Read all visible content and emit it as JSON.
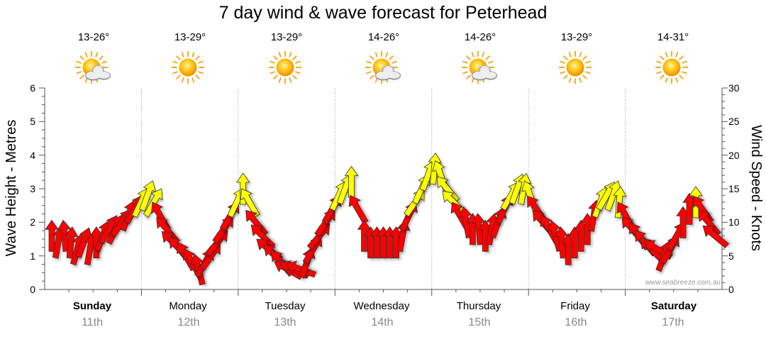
{
  "chart_data": {
    "type": "arrow-timeseries",
    "title": "7 day wind & wave forecast for Peterhead",
    "ylabel_left": "Wave Height - Metres",
    "ylabel_right": "Wind Speed - Knots",
    "left_ticks": [
      "0",
      "1",
      "2",
      "3",
      "4",
      "5",
      "6"
    ],
    "right_ticks": [
      "0",
      "5",
      "10",
      "15",
      "20",
      "25",
      "30"
    ],
    "ylim_left": [
      0,
      6
    ],
    "ylim_right": [
      0,
      30
    ],
    "watermark": "www.seabreeze.com.au",
    "days": [
      {
        "name": "Sunday",
        "date": "11th",
        "temp": "13-26°",
        "icon": "sun-cloud",
        "bold": true
      },
      {
        "name": "Monday",
        "date": "12th",
        "temp": "13-29°",
        "icon": "sun",
        "bold": false
      },
      {
        "name": "Tuesday",
        "date": "13th",
        "temp": "13-29°",
        "icon": "sun",
        "bold": false
      },
      {
        "name": "Wednesday",
        "date": "14th",
        "temp": "14-26°",
        "icon": "sun-cloud",
        "bold": false
      },
      {
        "name": "Thursday",
        "date": "15th",
        "temp": "14-26°",
        "icon": "sun-cloud",
        "bold": false
      },
      {
        "name": "Friday",
        "date": "16th",
        "temp": "13-29°",
        "icon": "sun",
        "bold": false
      },
      {
        "name": "Saturday",
        "date": "17th",
        "temp": "14-31°",
        "icon": "sun",
        "bold": true
      }
    ],
    "wind_knots": [
      8,
      7,
      8,
      7,
      6,
      7,
      6,
      7,
      8,
      9,
      9,
      10,
      11,
      12,
      13,
      14,
      13,
      11,
      9,
      7,
      6,
      5,
      4,
      3,
      4,
      5,
      7,
      9,
      11,
      13,
      15,
      13,
      10,
      8,
      6,
      5,
      4,
      3,
      3,
      3,
      4,
      6,
      8,
      10,
      12,
      14,
      15,
      16,
      12,
      8,
      7,
      7,
      7,
      7,
      7,
      8,
      11,
      13,
      15,
      17,
      18,
      17,
      15,
      13,
      11,
      10,
      9,
      9,
      8,
      9,
      10,
      12,
      14,
      15,
      15,
      14,
      12,
      10,
      9,
      8,
      7,
      6,
      7,
      8,
      9,
      11,
      13,
      14,
      14,
      13,
      11,
      9,
      8,
      7,
      6,
      6,
      5,
      6,
      8,
      10,
      12,
      13,
      12,
      10,
      8
    ],
    "wind_dir_deg": [
      180,
      190,
      175,
      185,
      195,
      200,
      190,
      180,
      200,
      210,
      205,
      215,
      200,
      210,
      205,
      200,
      210,
      150,
      140,
      135,
      140,
      150,
      150,
      165,
      210,
      215,
      220,
      215,
      210,
      205,
      180,
      150,
      140,
      135,
      130,
      135,
      140,
      120,
      115,
      110,
      200,
      210,
      220,
      215,
      210,
      205,
      200,
      180,
      150,
      180,
      180,
      180,
      180,
      180,
      180,
      190,
      205,
      215,
      205,
      200,
      185,
      160,
      140,
      135,
      150,
      170,
      180,
      175,
      180,
      190,
      200,
      205,
      210,
      200,
      190,
      160,
      145,
      140,
      150,
      165,
      175,
      180,
      180,
      180,
      180,
      190,
      200,
      210,
      200,
      185,
      150,
      140,
      145,
      140,
      135,
      120,
      200,
      210,
      210,
      180,
      180,
      180,
      145,
      140,
      130
    ]
  }
}
